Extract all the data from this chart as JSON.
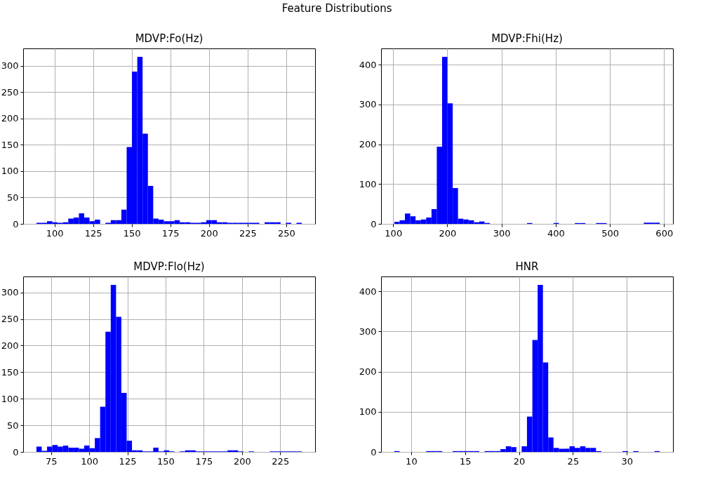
{
  "chart_data": [
    {
      "type": "histogram",
      "title": "MDVP:Fo(Hz)",
      "annotations": [
        "Feature Distributions"
      ],
      "color": "#0000ff",
      "grid": true,
      "bins": [
        88.33,
        91.77,
        95.2,
        98.64,
        102.07,
        105.51,
        108.94,
        112.38,
        115.82,
        119.25,
        122.69,
        126.12,
        129.56,
        133.0,
        136.43,
        139.87,
        143.3,
        146.74,
        150.17,
        153.61,
        157.04,
        160.48,
        163.92,
        167.35,
        170.79,
        174.22,
        177.66,
        181.09,
        184.53,
        187.96,
        191.4,
        194.83,
        198.27,
        201.71,
        205.14,
        208.58,
        212.01,
        215.45,
        218.88,
        222.32,
        225.75,
        229.19,
        232.63,
        236.06,
        239.5,
        242.93,
        246.37,
        249.8,
        253.24,
        256.67,
        260.11
      ],
      "values": [
        2,
        2,
        5,
        3,
        2,
        3,
        10,
        12,
        20,
        12,
        5,
        8,
        0,
        2,
        7,
        7,
        27,
        146,
        289,
        317,
        171,
        72,
        10,
        8,
        5,
        5,
        7,
        3,
        3,
        2,
        2,
        3,
        7,
        7,
        3,
        3,
        2,
        2,
        2,
        2,
        2,
        2,
        0,
        3,
        3,
        3,
        0,
        2,
        0,
        2
      ],
      "xlim": [
        79.74,
        268.7
      ],
      "xticks": [
        100,
        125,
        150,
        175,
        200,
        225,
        250
      ],
      "ylim": [
        0,
        333
      ],
      "yticks": [
        0,
        50,
        100,
        150,
        200,
        250,
        300
      ]
    },
    {
      "type": "histogram",
      "title": "MDVP:Fhi(Hz)",
      "color": "#0000ff",
      "grid": true,
      "bins": [
        102.15,
        111.94,
        121.74,
        131.54,
        141.34,
        151.13,
        160.93,
        170.73,
        180.53,
        190.32,
        200.12,
        209.92,
        219.72,
        229.51,
        239.31,
        249.11,
        258.91,
        268.71,
        278.5,
        288.3,
        298.1,
        307.9,
        317.69,
        327.49,
        337.29,
        347.09,
        356.89,
        366.68,
        376.48,
        386.28,
        396.08,
        405.87,
        415.67,
        425.47,
        435.27,
        445.06,
        454.86,
        464.66,
        474.46,
        484.25,
        494.05,
        503.85,
        513.65,
        523.44,
        533.24,
        543.04,
        552.84,
        562.63,
        572.43,
        582.23,
        592.03
      ],
      "values": [
        5,
        9,
        26,
        19,
        9,
        11,
        16,
        37,
        194,
        420,
        303,
        90,
        13,
        11,
        9,
        4,
        6,
        2,
        0,
        0,
        0,
        0,
        0,
        0,
        0,
        2,
        0,
        0,
        0,
        0,
        2,
        0,
        0,
        0,
        2,
        2,
        0,
        0,
        2,
        2,
        0,
        0,
        0,
        0,
        0,
        0,
        0,
        3,
        3,
        3
      ],
      "xlim": [
        77.65,
        616.5
      ],
      "xticks": [
        100,
        200,
        300,
        400,
        500,
        600
      ],
      "ylim": [
        0,
        441
      ],
      "yticks": [
        0,
        100,
        200,
        300,
        400
      ]
    },
    {
      "type": "histogram",
      "title": "MDVP:Flo(Hz)",
      "color": "#0000ff",
      "grid": true,
      "bins": [
        65.48,
        68.95,
        72.42,
        75.9,
        79.37,
        82.85,
        86.32,
        89.79,
        93.27,
        96.74,
        100.21,
        103.69,
        107.16,
        110.64,
        114.11,
        117.58,
        121.06,
        124.53,
        128.01,
        131.48,
        134.95,
        138.43,
        141.9,
        145.38,
        148.85,
        152.32,
        155.8,
        159.27,
        162.75,
        166.22,
        169.69,
        173.17,
        176.64,
        180.11,
        183.59,
        187.06,
        190.54,
        194.01,
        197.48,
        200.96,
        204.43,
        207.91,
        211.38,
        214.85,
        218.33,
        221.8,
        225.27,
        228.75,
        232.22,
        235.7,
        239.17
      ],
      "values": [
        10,
        2,
        10,
        13,
        10,
        12,
        8,
        8,
        6,
        12,
        7,
        26,
        85,
        226,
        314,
        254,
        111,
        21,
        3,
        3,
        1,
        1,
        8,
        1,
        3,
        1,
        0,
        1,
        3,
        3,
        1,
        1,
        1,
        1,
        1,
        1,
        3,
        3,
        1,
        0,
        1,
        0,
        0,
        0,
        1,
        1,
        1,
        1,
        1,
        1
      ],
      "xlim": [
        56.79,
        247.85
      ],
      "xticks": [
        75,
        100,
        125,
        150,
        175,
        200,
        225
      ],
      "ylim": [
        0,
        330
      ],
      "yticks": [
        0,
        50,
        100,
        150,
        200,
        250,
        300
      ]
    },
    {
      "type": "histogram",
      "title": "HNR",
      "color": "#0000ff",
      "grid": true,
      "bins": [
        8.44,
        8.93,
        9.43,
        9.92,
        10.41,
        10.9,
        11.39,
        11.89,
        12.38,
        12.87,
        13.36,
        13.85,
        14.35,
        14.84,
        15.33,
        15.82,
        16.31,
        16.81,
        17.3,
        17.79,
        18.28,
        18.78,
        19.27,
        19.76,
        20.25,
        20.74,
        21.24,
        21.73,
        22.22,
        22.71,
        23.2,
        23.7,
        24.19,
        24.68,
        25.17,
        25.67,
        26.16,
        26.65,
        27.14,
        27.63,
        28.13,
        28.62,
        29.11,
        29.6,
        30.1,
        30.59,
        31.08,
        31.57,
        32.07,
        32.56,
        33.05
      ],
      "values": [
        2,
        0,
        0,
        0,
        0,
        0,
        2,
        2,
        2,
        0,
        0,
        2,
        2,
        2,
        2,
        2,
        0,
        2,
        2,
        2,
        7,
        14,
        12,
        0,
        14,
        88,
        279,
        416,
        223,
        36,
        10,
        8,
        8,
        14,
        10,
        14,
        10,
        10,
        2,
        0,
        0,
        0,
        0,
        2,
        0,
        2,
        0,
        0,
        0,
        2
      ],
      "xlim": [
        7.21,
        34.28
      ],
      "xticks": [
        10,
        15,
        20,
        25,
        30
      ],
      "ylim": [
        0,
        437
      ],
      "yticks": [
        0,
        100,
        200,
        300,
        400
      ]
    }
  ]
}
